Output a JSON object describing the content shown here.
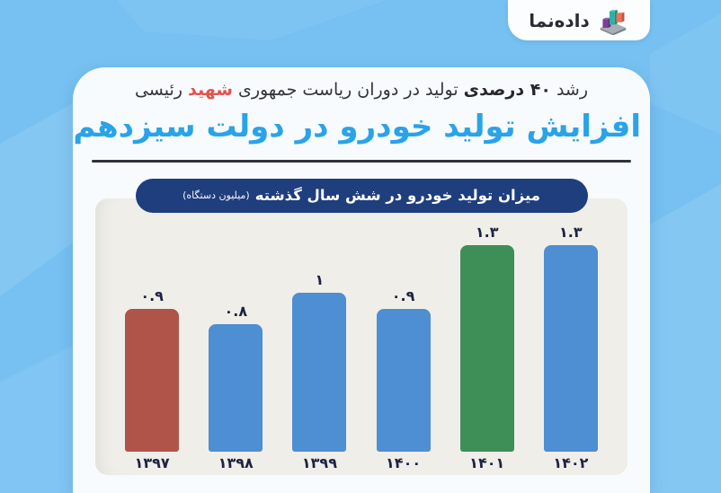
{
  "brand": {
    "name": "داده‌نما",
    "icon": "bar-chart-3d-icon"
  },
  "header": {
    "subtitle_pre": "رشد ",
    "subtitle_bold": "۴۰ درصدی",
    "subtitle_mid": " تولید در دوران ریاست جمهوری ",
    "subtitle_highlight": "شهید",
    "subtitle_post": " رئیسی",
    "title": "افزایش تولید خودرو در دولت سیزدهم"
  },
  "chart_header": {
    "label": "میزان تولید خودرو در شش سال گذشته",
    "unit_note": "(میلیون دستگاه)"
  },
  "chart_data": {
    "type": "bar",
    "title": "میزان تولید خودرو در شش سال گذشته (میلیون دستگاه)",
    "categories": [
      "۱۳۹۷",
      "۱۳۹۸",
      "۱۳۹۹",
      "۱۴۰۰",
      "۱۴۰۱",
      "۱۴۰۲"
    ],
    "values": [
      0.9,
      0.8,
      1,
      0.9,
      1.3,
      1.3
    ],
    "value_labels": [
      "۰.۹",
      "۰.۸",
      "۱",
      "۰.۹",
      "۱.۳",
      "۱.۳"
    ],
    "bar_colors": [
      "#b0544a",
      "#4e8ed2",
      "#4e8ed2",
      "#4e8ed2",
      "#3e8f57",
      "#4e8ed2"
    ],
    "xlabel": "",
    "ylabel": "",
    "ylim": [
      0,
      1.4
    ],
    "grid": false,
    "legend": false
  },
  "colors": {
    "background": "#76c1f2",
    "card": "#f8fbfe",
    "panel": "#f0eee9",
    "title_blue": "#2aa3e8",
    "highlight_red": "#e0534f",
    "pill_navy": "#1f3e7e",
    "label_dark": "#1d2440"
  }
}
